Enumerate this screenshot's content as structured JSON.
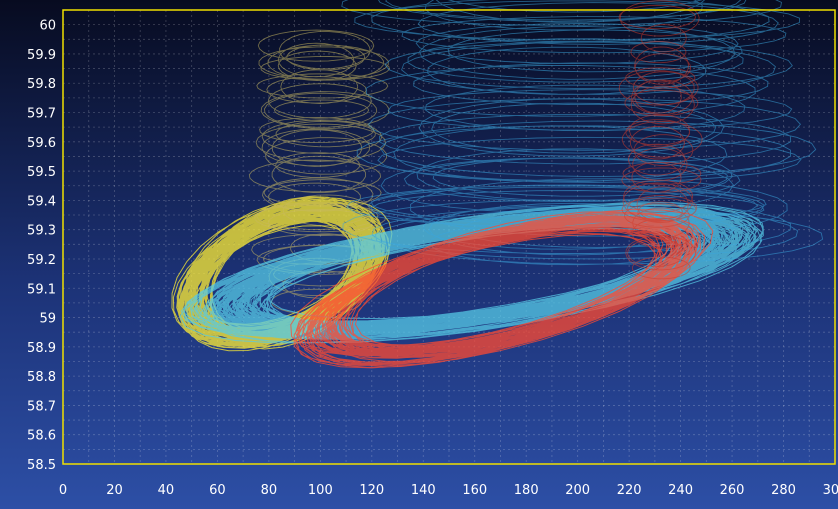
{
  "chart_data": {
    "type": "line",
    "title": "",
    "xlabel": "",
    "ylabel": "",
    "xlim": [
      0,
      300
    ],
    "ylim": [
      58.5,
      60.05
    ],
    "x_ticks": [
      "0",
      "20",
      "40",
      "60",
      "80",
      "100",
      "120",
      "140",
      "160",
      "180",
      "200",
      "220",
      "240",
      "260",
      "280",
      "300"
    ],
    "y_ticks": [
      "58.5",
      "58.6",
      "58.7",
      "58.8",
      "58.9",
      "59",
      "59.1",
      "59.2",
      "59.3",
      "59.4",
      "59.5",
      "59.6",
      "59.7",
      "59.8",
      "59.9",
      "60"
    ],
    "grid": true,
    "series": [
      {
        "color": "#ffee33",
        "kind": "dense-loop",
        "center": [
          85,
          59.15
        ],
        "radius": [
          35,
          0.2
        ],
        "tilt": 0.0025,
        "loops": 90,
        "spread": 0.25
      },
      {
        "color": "#c8b860",
        "kind": "spiral-column",
        "center": [
          100,
          59.5
        ],
        "radius": [
          20,
          0.05
        ],
        "tilt": 0,
        "loops": 40,
        "spread": 0.6
      },
      {
        "color": "#55c9e6",
        "kind": "dense-loop",
        "center": [
          160,
          59.15
        ],
        "radius": [
          95,
          0.16
        ],
        "tilt": 0.0012,
        "loops": 110,
        "spread": 0.2
      },
      {
        "color": "#3aa6dc",
        "kind": "spiral-column",
        "center": [
          200,
          59.7
        ],
        "radius": [
          70,
          0.08
        ],
        "tilt": 0,
        "loops": 45,
        "spread": 0.5
      },
      {
        "color": "#ff4a30",
        "kind": "dense-loop",
        "center": [
          170,
          59.1
        ],
        "radius": [
          70,
          0.18
        ],
        "tilt": 0.002,
        "loops": 60,
        "spread": 0.15
      },
      {
        "color": "#d23a2a",
        "kind": "spiral-column",
        "center": [
          232,
          59.6
        ],
        "radius": [
          12,
          0.05
        ],
        "tilt": 0,
        "loops": 35,
        "spread": 0.6
      }
    ]
  },
  "colors": {
    "background_top": "#0a0f28",
    "background_bottom": "#2a4ba0",
    "plot_border": "#f0e000",
    "grid": "#ffffff"
  }
}
